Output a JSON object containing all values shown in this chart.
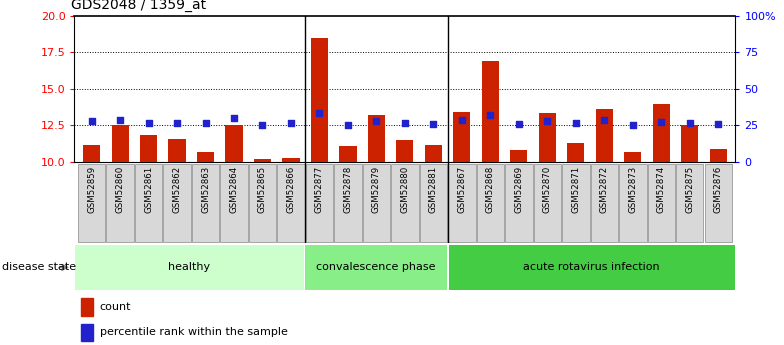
{
  "title": "GDS2048 / 1359_at",
  "samples": [
    "GSM52859",
    "GSM52860",
    "GSM52861",
    "GSM52862",
    "GSM52863",
    "GSM52864",
    "GSM52865",
    "GSM52866",
    "GSM52877",
    "GSM52878",
    "GSM52879",
    "GSM52880",
    "GSM52881",
    "GSM52867",
    "GSM52868",
    "GSM52869",
    "GSM52870",
    "GSM52871",
    "GSM52872",
    "GSM52873",
    "GSM52874",
    "GSM52875",
    "GSM52876"
  ],
  "count_values": [
    11.2,
    12.5,
    11.85,
    11.6,
    10.7,
    12.5,
    10.2,
    10.3,
    18.5,
    11.1,
    13.2,
    11.5,
    11.2,
    13.4,
    16.9,
    10.8,
    13.35,
    11.3,
    13.6,
    10.7,
    14.0,
    12.5,
    10.9
  ],
  "percentile_values": [
    12.8,
    12.9,
    12.7,
    12.7,
    12.7,
    13.0,
    12.55,
    12.7,
    13.35,
    12.5,
    12.8,
    12.7,
    12.6,
    12.85,
    13.2,
    12.6,
    12.8,
    12.7,
    12.85,
    12.5,
    12.75,
    12.65,
    12.6
  ],
  "group_boundaries": [
    8,
    13
  ],
  "groups": [
    {
      "label": "healthy",
      "start": 0,
      "end": 8,
      "color": "#ccffcc"
    },
    {
      "label": "convalescence phase",
      "start": 8,
      "end": 13,
      "color": "#88ee88"
    },
    {
      "label": "acute rotavirus infection",
      "start": 13,
      "end": 23,
      "color": "#44cc44"
    }
  ],
  "ylim_left": [
    10,
    20
  ],
  "yticks_left": [
    10,
    12.5,
    15,
    17.5,
    20
  ],
  "yticks_right_pct": [
    0,
    25,
    50,
    75,
    100
  ],
  "baseline": 10,
  "dotted_lines": [
    12.5,
    15,
    17.5
  ],
  "bar_color": "#cc2200",
  "dot_color": "#2222cc",
  "bar_width": 0.6,
  "figsize": [
    7.84,
    3.45
  ],
  "dpi": 100
}
